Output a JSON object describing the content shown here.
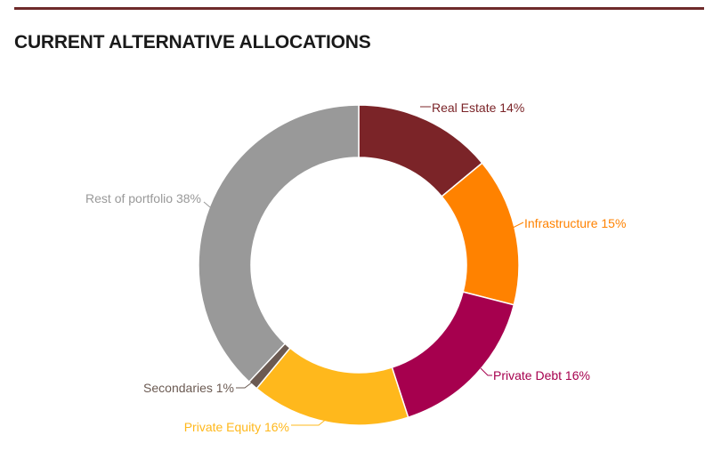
{
  "header": {
    "title": "CURRENT ALTERNATIVE ALLOCATIONS"
  },
  "chart_data": {
    "type": "pie",
    "style": "donut",
    "title": "CURRENT ALTERNATIVE ALLOCATIONS",
    "unit": "%",
    "slices": [
      {
        "label": "Real Estate",
        "value": 14,
        "display": "Real Estate 14%",
        "color": "#7b2428"
      },
      {
        "label": "Infrastructure",
        "value": 15,
        "display": "Infrastructure 15%",
        "color": "#ff8200"
      },
      {
        "label": "Private Debt",
        "value": 16,
        "display": "Private Debt 16%",
        "color": "#a6004e"
      },
      {
        "label": "Private Equity",
        "value": 16,
        "display": "Private Equity 16%",
        "color": "#ffb81c"
      },
      {
        "label": "Secondaries",
        "value": 1,
        "display": "Secondaries 1%",
        "color": "#6b5a52"
      },
      {
        "label": "Rest of portfolio",
        "value": 38,
        "display": "Rest of portfolio 38%",
        "color": "#999999"
      }
    ]
  }
}
